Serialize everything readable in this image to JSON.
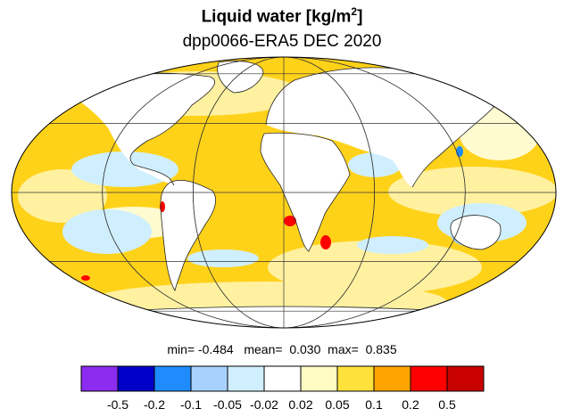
{
  "title": {
    "prefix": "Liquid water  [kg/m",
    "superscript": "2",
    "suffix": "]",
    "subtitle": "dpp0066-ERA5 DEC 2020"
  },
  "stats": {
    "min_label": "min=",
    "min_value": "-0.484",
    "mean_label": "mean=",
    "mean_value": "0.030",
    "max_label": "max=",
    "max_value": "0.835"
  },
  "map": {
    "projection": "Mollweide",
    "grid": true,
    "colors": {
      "land": "#ffffff",
      "ocean_positive": "#ffd21a",
      "ocean_light": "#fff1a0",
      "ocean_pale": "#fffbd0",
      "negative_light": "#cfefff",
      "negative_mid": "#a7d2ff",
      "negative_strong": "#1e8cff",
      "extreme_pos": "#ff0000"
    }
  },
  "colorbar": {
    "colors": [
      "#8b2cf0",
      "#0000c8",
      "#1e8cff",
      "#a7d2ff",
      "#cfefff",
      "#ffffff",
      "#fffbc2",
      "#ffe13b",
      "#ffa500",
      "#ff0000",
      "#c80000"
    ],
    "ticks": [
      "-0.5",
      "-0.2",
      "-0.1",
      "-0.05",
      "-0.02",
      "0.02",
      "0.05",
      "0.1",
      "0.2",
      "0.5"
    ]
  }
}
